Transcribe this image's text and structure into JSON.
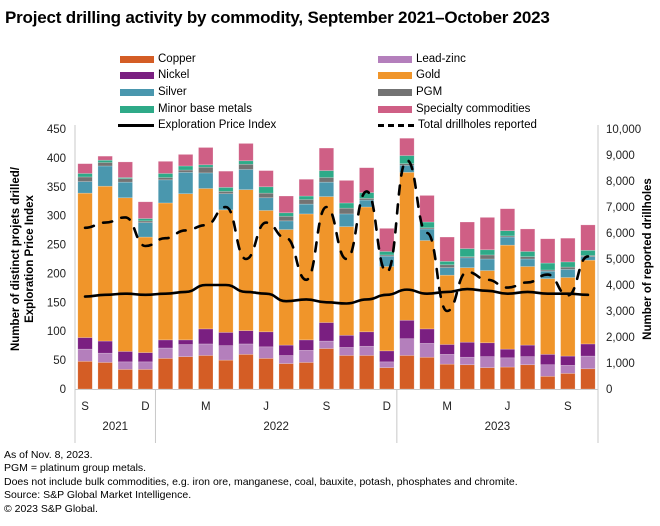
{
  "title": "Project drilling activity by commodity, September 2021–October 2023",
  "legend": [
    {
      "key": "copper",
      "label": "Copper",
      "type": "bar",
      "color": "#d45d25"
    },
    {
      "key": "leadzinc",
      "label": "Lead-zinc",
      "type": "bar",
      "color": "#b47fbc"
    },
    {
      "key": "nickel",
      "label": "Nickel",
      "type": "bar",
      "color": "#7a1f81"
    },
    {
      "key": "gold",
      "label": "Gold",
      "type": "bar",
      "color": "#f0952a"
    },
    {
      "key": "silver",
      "label": "Silver",
      "type": "bar",
      "color": "#4a97ae"
    },
    {
      "key": "pgm",
      "label": "PGM",
      "type": "bar",
      "color": "#737373"
    },
    {
      "key": "minor",
      "label": "Minor base metals",
      "type": "bar",
      "color": "#2eaa88"
    },
    {
      "key": "specialty",
      "label": "Specialty commodities",
      "type": "bar",
      "color": "#cf5f85"
    },
    {
      "key": "epi",
      "label": "Exploration Price Index",
      "type": "line",
      "color": "#000000"
    },
    {
      "key": "drillholes",
      "label": "Total drillholes reported",
      "type": "dashed",
      "color": "#000000"
    }
  ],
  "chart_data": {
    "type": "bar",
    "stacked": true,
    "title": "Project drilling activity by commodity, September 2021–October 2023",
    "ylabel": "Number of distinct projets drilled/ Exploration Price Index",
    "y2label": "Number of reported drillholes",
    "ylim": [
      0,
      450
    ],
    "y2lim": [
      0,
      10000
    ],
    "yticks": [
      "0",
      "50",
      "100",
      "150",
      "200",
      "250",
      "300",
      "350",
      "400",
      "450"
    ],
    "y2ticks": [
      "0",
      "1,000",
      "2,000",
      "3,000",
      "4,000",
      "5,000",
      "6,000",
      "7,000",
      "8,000",
      "9,000",
      "10,000"
    ],
    "month_ticks": [
      {
        "index": 0,
        "label": "S"
      },
      {
        "index": 3,
        "label": "D"
      },
      {
        "index": 6,
        "label": "M"
      },
      {
        "index": 9,
        "label": "J"
      },
      {
        "index": 12,
        "label": "S"
      },
      {
        "index": 15,
        "label": "D"
      },
      {
        "index": 18,
        "label": "M"
      },
      {
        "index": 21,
        "label": "J"
      },
      {
        "index": 24,
        "label": "S"
      }
    ],
    "year_groups": [
      {
        "label": "2021",
        "start": 0,
        "end": 3
      },
      {
        "label": "2022",
        "start": 4,
        "end": 15
      },
      {
        "label": "2023",
        "start": 16,
        "end": 25
      }
    ],
    "categories": [
      "Sep 2021",
      "Oct 2021",
      "Nov 2021",
      "Dec 2021",
      "Jan 2022",
      "Feb 2022",
      "Mar 2022",
      "Apr 2022",
      "May 2022",
      "Jun 2022",
      "Jul 2022",
      "Aug 2022",
      "Sep 2022",
      "Oct 2022",
      "Nov 2022",
      "Dec 2022",
      "Jan 2023",
      "Feb 2023",
      "Mar 2023",
      "Apr 2023",
      "May 2023",
      "Jun 2023",
      "Jul 2023",
      "Aug 2023",
      "Sep 2023",
      "Oct 2023"
    ],
    "series": [
      {
        "name": "Copper",
        "key": "copper",
        "values": [
          48,
          46,
          34,
          34,
          53,
          56,
          58,
          50,
          60,
          53,
          44,
          46,
          70,
          58,
          58,
          37,
          58,
          55,
          43,
          42,
          37,
          38,
          42,
          22,
          27,
          35
        ]
      },
      {
        "name": "Lead-zinc",
        "key": "leadzinc",
        "values": [
          21,
          16,
          13,
          13,
          18,
          21,
          20,
          25,
          18,
          20,
          14,
          21,
          13,
          14,
          16,
          10,
          29,
          24,
          17,
          13,
          19,
          16,
          14,
          20,
          14,
          22
        ]
      },
      {
        "name": "Nickel",
        "key": "nickel",
        "values": [
          20,
          21,
          18,
          16,
          14,
          8,
          26,
          23,
          23,
          26,
          18,
          18,
          32,
          21,
          25,
          19,
          32,
          25,
          17,
          26,
          24,
          15,
          20,
          18,
          16,
          21
        ]
      },
      {
        "name": "Gold",
        "key": "gold",
        "values": [
          250,
          268,
          266,
          200,
          237,
          253,
          243,
          212,
          244,
          210,
          200,
          218,
          218,
          188,
          216,
          146,
          256,
          153,
          120,
          129,
          125,
          180,
          136,
          131,
          136,
          145
        ]
      },
      {
        "name": "Silver",
        "key": "silver",
        "values": [
          20,
          35,
          27,
          25,
          40,
          37,
          27,
          28,
          35,
          22,
          15,
          17,
          25,
          22,
          12,
          18,
          12,
          20,
          13,
          17,
          20,
          14,
          13,
          13,
          14,
          6
        ]
      },
      {
        "name": "PGM",
        "key": "pgm",
        "values": [
          8,
          6,
          6,
          3,
          4,
          4,
          10,
          4,
          9,
          8,
          8,
          8,
          8,
          10,
          3,
          2,
          3,
          2,
          5,
          2,
          7,
          2,
          4,
          2,
          4,
          2
        ]
      },
      {
        "name": "Minor base metals",
        "key": "minor",
        "values": [
          6,
          4,
          2,
          4,
          7,
          7,
          4,
          7,
          6,
          11,
          6,
          6,
          12,
          9,
          10,
          6,
          14,
          10,
          6,
          14,
          9,
          9,
          9,
          12,
          9,
          9
        ]
      },
      {
        "name": "Specialty commodities",
        "key": "specialty",
        "values": [
          17,
          7,
          27,
          29,
          21,
          20,
          30,
          28,
          30,
          28,
          29,
          29,
          39,
          39,
          43,
          40,
          30,
          46,
          42,
          46,
          56,
          38,
          39,
          42,
          41,
          44
        ]
      }
    ],
    "lines": [
      {
        "name": "Exploration Price Index",
        "axis": "left",
        "values": [
          160,
          163,
          165,
          163,
          165,
          168,
          180,
          180,
          168,
          165,
          152,
          155,
          150,
          148,
          155,
          163,
          172,
          165,
          168,
          173,
          170,
          165,
          168,
          165,
          165,
          163
        ]
      },
      {
        "name": "Total drillholes reported",
        "axis": "right",
        "style": "dashed",
        "values": [
          6200,
          6400,
          6600,
          5500,
          5800,
          6100,
          6300,
          7000,
          5000,
          6400,
          5800,
          4200,
          7000,
          5000,
          7600,
          4500,
          8800,
          6000,
          3000,
          4500,
          4200,
          3900,
          4100,
          4400,
          3600,
          5100
        ]
      }
    ]
  },
  "footer": {
    "notes": [
      "As of Nov. 8, 2023.",
      "PGM = platinum group metals.",
      "Does not include bulk commodities, e.g. iron ore, manganese, coal, bauxite, potash, phosphates and chromite.",
      "Source: S&P Global Market Intelligence.",
      "© 2023 S&P Global."
    ]
  }
}
